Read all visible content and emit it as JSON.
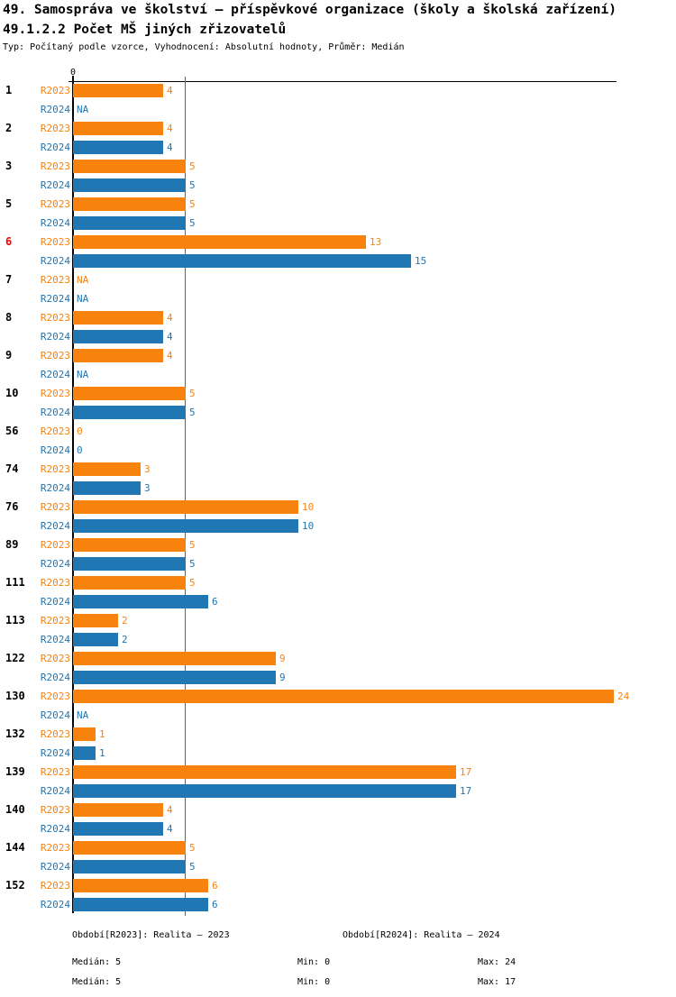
{
  "header": {
    "title": "49. Samospráva ve školství – příspěvkové organizace (školy a školská zařízení)",
    "subtitle": "49.1.2.2 Počet MŠ jiných zřizovatelů",
    "meta": "Typ: Počítaný podle vzorce, Vyhodnocení: Absolutní hodnoty, Průměr: Medián"
  },
  "axis": {
    "zero_label": "0"
  },
  "na_label": "NA",
  "colors": {
    "r2023": "#F8820E",
    "r2024": "#2077B4",
    "category": "#000000",
    "category_highlight": "#FF0000",
    "axis": "#000000",
    "median_line": "#2077B4"
  },
  "chart_data": {
    "type": "bar",
    "orientation": "horizontal",
    "title": "49.1.2.2 Počet MŠ jiných zřizovatelů",
    "xlim": [
      0,
      24
    ],
    "median_value": 5,
    "grid": false,
    "categories": [
      "1",
      "2",
      "3",
      "5",
      "6",
      "7",
      "8",
      "9",
      "10",
      "56",
      "74",
      "76",
      "89",
      "111",
      "113",
      "122",
      "130",
      "132",
      "139",
      "140",
      "144",
      "152"
    ],
    "highlighted_categories": [
      "6"
    ],
    "series": [
      {
        "name": "R2023",
        "color": "#F8820E",
        "values": [
          4,
          4,
          5,
          5,
          13,
          null,
          4,
          4,
          5,
          0,
          3,
          10,
          5,
          5,
          2,
          9,
          24,
          1,
          17,
          4,
          5,
          6
        ]
      },
      {
        "name": "R2024",
        "color": "#2077B4",
        "values": [
          null,
          4,
          5,
          5,
          15,
          null,
          4,
          null,
          5,
          0,
          3,
          10,
          5,
          6,
          2,
          9,
          null,
          1,
          17,
          4,
          5,
          6
        ]
      }
    ]
  },
  "legend": {
    "r2023": "Období[R2023]: Realita – 2023",
    "r2024": "Období[R2024]: Realita – 2024"
  },
  "stats": {
    "r2023": {
      "median": "Medián: 5",
      "min": "Min: 0",
      "max": "Max: 24"
    },
    "r2024": {
      "median": "Medián: 5",
      "min": "Min: 0",
      "max": "Max: 17"
    }
  }
}
